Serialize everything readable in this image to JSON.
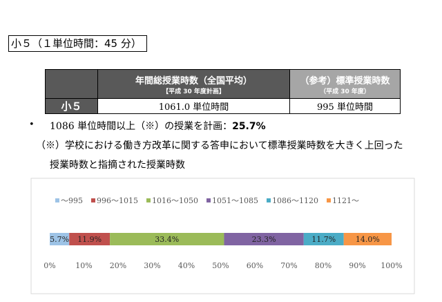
{
  "header": {
    "title": "小５（１単位時間：45 分）"
  },
  "table": {
    "header": [
      {
        "title": "年間総授業時数（全国平均）",
        "subtitle": "【平成 30 年度計画】"
      },
      {
        "title": "（参考）標準授業時数",
        "subtitle": "（平成 30 年度）"
      }
    ],
    "rows": [
      [
        "小５",
        "1061.0 単位時間",
        "995 単位時間"
      ]
    ]
  },
  "bullet": {
    "text": "1086 単位時間以上（※）の授業を計画：",
    "highlight": "25.7%"
  },
  "note": {
    "lines": [
      "（※）学校における働き方改革に関する答申において標準授業時数を大きく上回った",
      "授業時数と指摘された授業時数"
    ]
  },
  "chart_data": {
    "type": "stacked-barh",
    "xlim": [
      0,
      100
    ],
    "xticks": [
      {
        "value": 0,
        "label": "0%"
      },
      {
        "value": 10,
        "label": "10%"
      },
      {
        "value": 20,
        "label": "20%"
      },
      {
        "value": 30,
        "label": "30%"
      },
      {
        "value": 40,
        "label": "40%"
      },
      {
        "value": 50,
        "label": "50%"
      },
      {
        "value": 60,
        "label": "60%"
      },
      {
        "value": 70,
        "label": "70%"
      },
      {
        "value": 80,
        "label": "80%"
      },
      {
        "value": 90,
        "label": "90%"
      },
      {
        "value": 100,
        "label": "100%"
      }
    ],
    "legend": "top",
    "series": [
      {
        "name": "～995",
        "color": "#9dc3e6",
        "values": [
          5.7
        ],
        "value_labels": [
          "5.7%"
        ]
      },
      {
        "name": "996～1015",
        "color": "#c0504d",
        "values": [
          11.9
        ],
        "value_labels": [
          "11.9%"
        ]
      },
      {
        "name": "1016～1050",
        "color": "#9bbb59",
        "values": [
          33.4
        ],
        "value_labels": [
          "33.4%"
        ]
      },
      {
        "name": "1051～1085",
        "color": "#8064a2",
        "values": [
          23.3
        ],
        "value_labels": [
          "23.3%"
        ]
      },
      {
        "name": "1086～1120",
        "color": "#4bacc6",
        "values": [
          11.7
        ],
        "value_labels": [
          "11.7%"
        ]
      },
      {
        "name": "1121～",
        "color": "#f79646",
        "values": [
          14.0
        ],
        "value_labels": [
          "14.0%"
        ]
      }
    ]
  }
}
